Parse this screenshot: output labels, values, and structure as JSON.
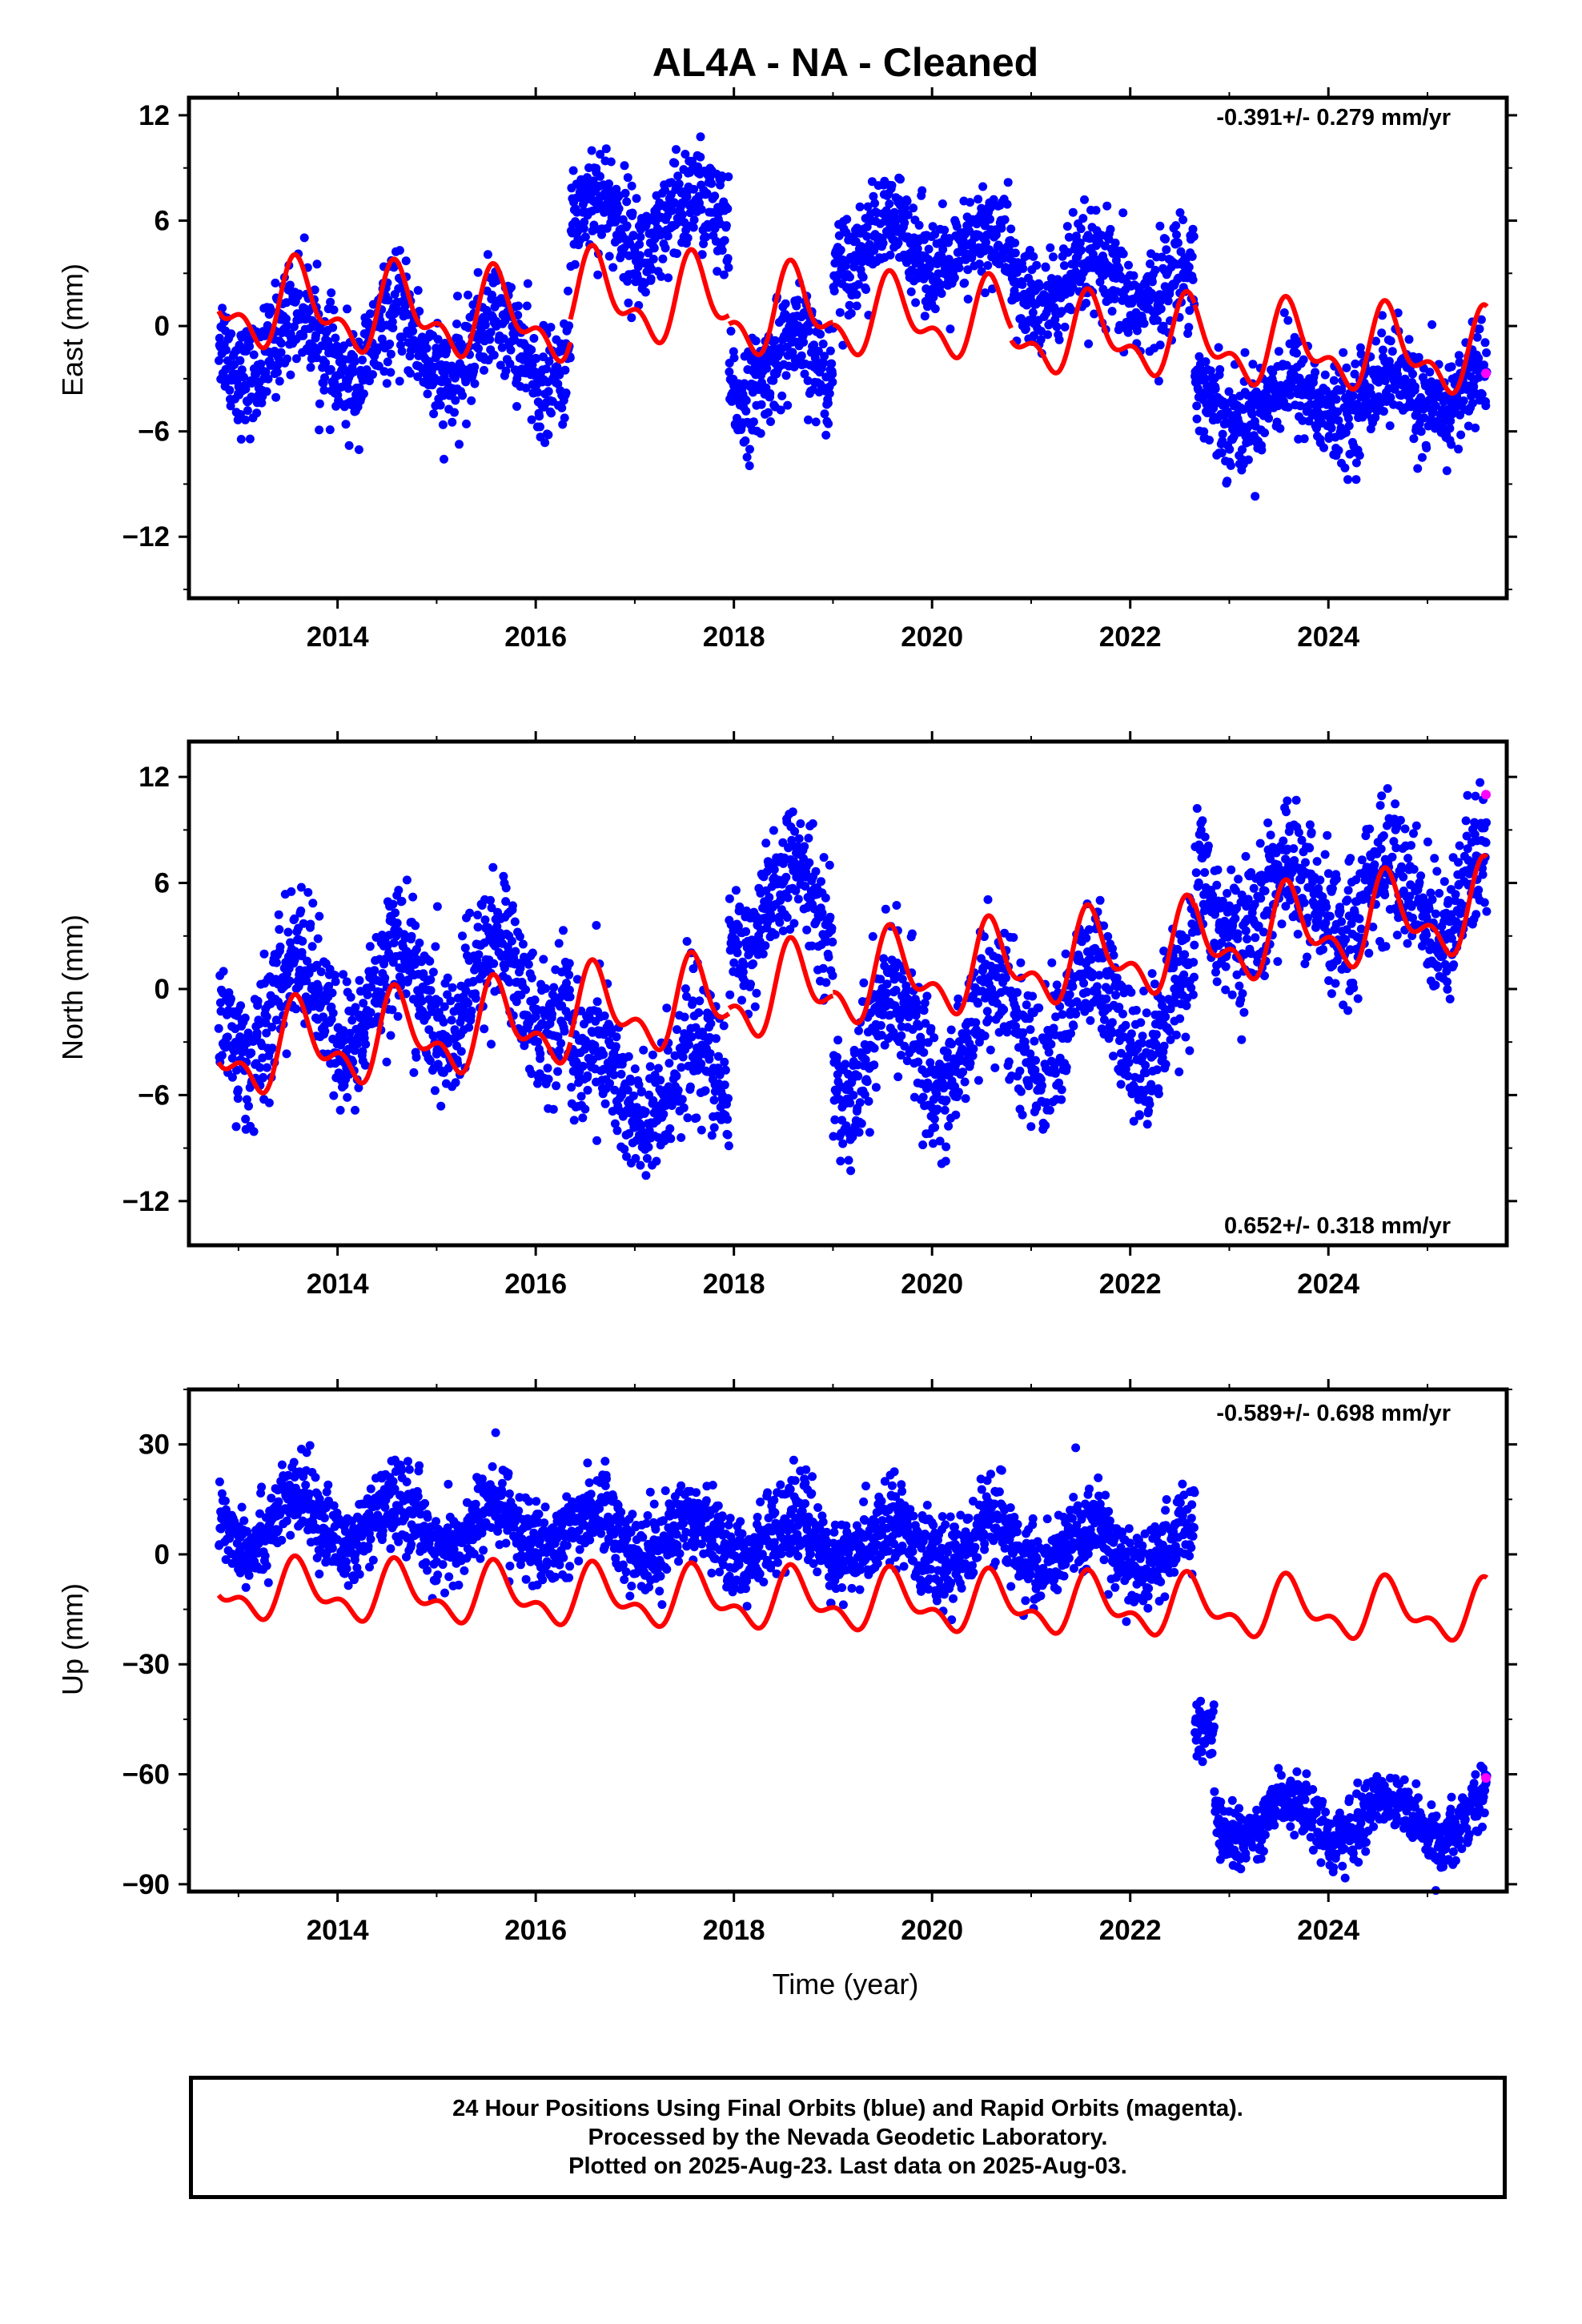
{
  "title": "AL4A  - NA - Cleaned",
  "colors": {
    "final": "#0000ff",
    "rapid": "#ff00ff",
    "model": "#ff0000",
    "frame": "#000000"
  },
  "chart_data": [
    {
      "type": "scatter",
      "ylabel": "East (mm)",
      "xlim": [
        2012.5,
        2025.8
      ],
      "ylim": [
        -15.5,
        13
      ],
      "yticks": [
        12,
        6,
        0,
        -6,
        -12
      ],
      "ytick_labels": [
        "12",
        "6",
        "0",
        "−6",
        "−12"
      ],
      "xticks": [
        2014,
        2016,
        2018,
        2020,
        2022,
        2024
      ],
      "xtick_labels": [
        "2014",
        "2016",
        "2018",
        "2020",
        "2022",
        "2024"
      ],
      "rate_text": "-0.391+/- 0.279 mm/yr",
      "rate_position": "top-right",
      "series": [
        {
          "kind": "final",
          "segments": [
            {
              "start": 2012.8,
              "end": 2016.35,
              "trend_a": -1.0,
              "trend_b": -0.15,
              "amp": 2.0,
              "noise": 1.5
            },
            {
              "start": 2016.35,
              "end": 2017.95,
              "trend_a": 5.8,
              "trend_b": 0.0,
              "amp": 1.7,
              "noise": 1.6
            },
            {
              "start": 2017.95,
              "end": 2019.0,
              "trend_a": -2.6,
              "trend_b": 0.3,
              "amp": 1.6,
              "noise": 1.5
            },
            {
              "start": 2019.0,
              "end": 2020.8,
              "trend_a": 4.8,
              "trend_b": -0.4,
              "amp": 1.2,
              "noise": 1.4
            },
            {
              "start": 2020.8,
              "end": 2022.65,
              "trend_a": 2.3,
              "trend_b": 0.0,
              "amp": 1.2,
              "noise": 1.5
            },
            {
              "start": 2022.65,
              "end": 2025.6,
              "trend_a": -4.5,
              "trend_b": 0.3,
              "amp": 1.2,
              "noise": 1.4
            }
          ]
        },
        {
          "kind": "rapid",
          "points": [
            [
              2025.59,
              -2.7
            ]
          ]
        },
        {
          "kind": "model",
          "segments": [
            {
              "start": 2012.8,
              "end": 2016.35,
              "base_start": 1.2,
              "base_end": 0.3,
              "amp": 2.0
            },
            {
              "start": 2016.35,
              "end": 2017.95,
              "base_start": 1.6,
              "base_end": 1.2,
              "amp": 2.0
            },
            {
              "start": 2017.95,
              "end": 2019.0,
              "base_start": 0.7,
              "base_end": 0.7,
              "amp": 2.0
            },
            {
              "start": 2019.0,
              "end": 2020.8,
              "base_start": 0.5,
              "base_end": 0.2,
              "amp": 1.8
            },
            {
              "start": 2020.8,
              "end": 2022.65,
              "base_start": -0.5,
              "base_end": -0.8,
              "amp": 1.8
            },
            {
              "start": 2022.65,
              "end": 2025.6,
              "base_start": -1.0,
              "base_end": -1.7,
              "amp": 1.9
            }
          ]
        }
      ]
    },
    {
      "type": "scatter",
      "ylabel": "North (mm)",
      "xlim": [
        2012.5,
        2025.8
      ],
      "ylim": [
        -14.5,
        14
      ],
      "yticks": [
        12,
        6,
        0,
        -6,
        -12
      ],
      "ytick_labels": [
        "12",
        "6",
        "0",
        "−6",
        "−12"
      ],
      "xticks": [
        2014,
        2016,
        2018,
        2020,
        2022,
        2024
      ],
      "xtick_labels": [
        "2014",
        "2016",
        "2018",
        "2020",
        "2022",
        "2024"
      ],
      "rate_text": "0.652+/- 0.318 mm/yr",
      "rate_position": "bottom-right",
      "series": [
        {
          "kind": "final",
          "segments": [
            {
              "start": 2012.8,
              "end": 2016.35,
              "trend_a": -1.5,
              "trend_b": 0.6,
              "amp": 2.8,
              "noise": 1.9
            },
            {
              "start": 2016.35,
              "end": 2017.95,
              "trend_a": -5.5,
              "trend_b": 0.0,
              "amp": 2.5,
              "noise": 2.0
            },
            {
              "start": 2017.95,
              "end": 2019.0,
              "trend_a": 4.5,
              "trend_b": 0.0,
              "amp": 2.3,
              "noise": 1.6
            },
            {
              "start": 2019.0,
              "end": 2020.8,
              "trend_a": -3.5,
              "trend_b": 0.6,
              "amp": 3.0,
              "noise": 1.9
            },
            {
              "start": 2020.8,
              "end": 2022.65,
              "trend_a": -1.8,
              "trend_b": 0.3,
              "amp": 2.8,
              "noise": 1.9
            },
            {
              "start": 2022.65,
              "end": 2025.6,
              "trend_a": 4.5,
              "trend_b": 0.3,
              "amp": 2.0,
              "noise": 1.9
            }
          ]
        },
        {
          "kind": "rapid",
          "points": [
            [
              2025.59,
              11.0
            ]
          ]
        },
        {
          "kind": "model",
          "segments": [
            {
              "start": 2012.8,
              "end": 2016.35,
              "base_start": -3.8,
              "base_end": -1.8,
              "amp": 2.0
            },
            {
              "start": 2016.35,
              "end": 2017.95,
              "base_start": -1.5,
              "base_end": -0.8,
              "amp": 2.0
            },
            {
              "start": 2017.95,
              "end": 2019.0,
              "base_start": -0.5,
              "base_end": 0.1,
              "amp": 2.0
            },
            {
              "start": 2019.0,
              "end": 2020.8,
              "base_start": 0.3,
              "base_end": 1.2,
              "amp": 2.0
            },
            {
              "start": 2020.8,
              "end": 2022.65,
              "base_start": 1.3,
              "base_end": 2.3,
              "amp": 2.0
            },
            {
              "start": 2022.65,
              "end": 2025.6,
              "base_start": 2.5,
              "base_end": 4.5,
              "amp": 2.0
            }
          ]
        }
      ]
    },
    {
      "type": "scatter",
      "ylabel": "Up (mm)",
      "xlim": [
        2012.5,
        2025.8
      ],
      "ylim": [
        -92,
        45
      ],
      "yticks": [
        30,
        0,
        -30,
        -60,
        -90
      ],
      "ytick_labels": [
        "30",
        "0",
        "−30",
        "−60",
        "−90"
      ],
      "xticks": [
        2014,
        2016,
        2018,
        2020,
        2022,
        2024
      ],
      "xtick_labels": [
        "2014",
        "2016",
        "2018",
        "2020",
        "2022",
        "2024"
      ],
      "rate_text": "-0.589+/- 0.698 mm/yr",
      "rate_position": "top-right",
      "xlabel": "Time (year)",
      "series": [
        {
          "kind": "final",
          "segments": [
            {
              "start": 2012.8,
              "end": 2022.65,
              "trend_a": 9.5,
              "trend_b": -0.9,
              "amp": 6.5,
              "noise": 5.5
            },
            {
              "start": 2022.65,
              "end": 2022.85,
              "trend_a": -48.0,
              "trend_b": 0.0,
              "amp": 0.0,
              "noise": 4.0
            },
            {
              "start": 2022.85,
              "end": 2025.6,
              "trend_a": -72.0,
              "trend_b": 0.0,
              "amp": 6.0,
              "noise": 4.0
            }
          ]
        },
        {
          "kind": "rapid",
          "points": [
            [
              2025.59,
              -61.0
            ]
          ]
        },
        {
          "kind": "model",
          "segments": [
            {
              "start": 2012.8,
              "end": 2025.6,
              "base_start": -10.0,
              "base_end": -16.0,
              "amp": 6.5
            }
          ]
        }
      ]
    }
  ],
  "footer": {
    "line1": "24 Hour Positions Using Final Orbits (blue) and Rapid Orbits (magenta).",
    "line2": "Processed by the Nevada Geodetic Laboratory.",
    "line3": "Plotted on 2025-Aug-23. Last data on 2025-Aug-03."
  }
}
